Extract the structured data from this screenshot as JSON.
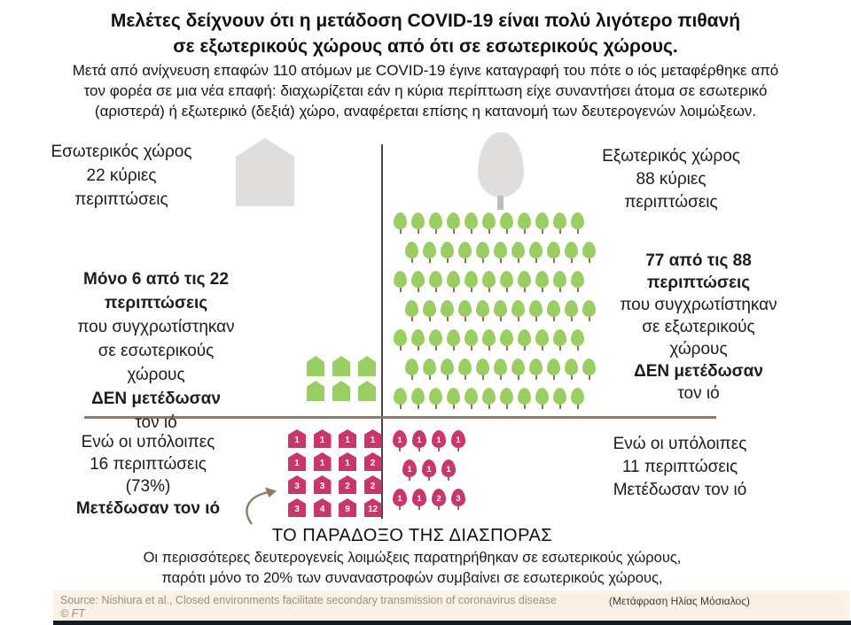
{
  "page": {
    "title_line1": "Μελέτες δείχνουν ότι η μετάδοση COVID-19 είναι πολύ λιγότερο πιθανή",
    "title_line2": "σε εξωτερικούς χώρους από ότι σε εσωτερικούς χώρους.",
    "subtitle_line1": "Μετά από ανίχνευση επαφών 110 ατόμων με COVID-19 έγινε καταγραφή του πότε ο ιός μεταφέρθηκε από",
    "subtitle_line2": "τον φορέα σε μια νέα επαφή: διαχωρίζεται εάν η κύρια περίπτωση είχε συναντήσει άτομα σε εσωτερικό",
    "subtitle_line3": "(αριστερά) ή εξωτερικό (δεξιά) χώρο, αναφέρεται επίσης η κατανομή των δευτερογενών λοιμώξεων."
  },
  "indoor": {
    "header_line1": "Εσωτερικός  χώρος",
    "header_line2": "22 κύριες",
    "header_line3": "περιπτώσεις",
    "no_transmit_line1": "Μόνο 6 από τις 22 περιπτώσεις",
    "no_transmit_line2": "που συγχρωτίστηκαν",
    "no_transmit_line3": "σε εσωτερικούς",
    "no_transmit_line4": "χώρους",
    "no_transmit_line5": "ΔΕΝ μετέδωσαν",
    "no_transmit_line6": "τον ιό",
    "transmit_line1": "Ενώ οι υπόλοιπες",
    "transmit_line2": "16 περιπτώσεις",
    "transmit_line3": "(73%)",
    "transmit_line4": "Μετέδωσαν  τον ιό"
  },
  "outdoor": {
    "header_line1": "Εξωτερικός  χώρος",
    "header_line2": "88 κύριες",
    "header_line3": "περιπτώσεις",
    "no_transmit_line1": "77 από τις 88",
    "no_transmit_line2": "περιπτώσεις",
    "no_transmit_line3": "που συγχρωτίστηκαν",
    "no_transmit_line4": "σε εξωτερικούς",
    "no_transmit_line5": "χώρους",
    "no_transmit_line6": "ΔΕΝ μετέδωσαν",
    "no_transmit_line7": "τον ιό",
    "transmit_line1": "Ενώ οι υπόλοιπες",
    "transmit_line2": "11 περιπτώσεις",
    "transmit_line3": "Μετέδωσαν τον ιό"
  },
  "paradox": {
    "heading": "ΤΟ ΠΑΡΑΔΟΞΟ ΤΗΣ ΔΙΑΣΠΟΡΑΣ",
    "line1": "Οι περισσότερες δευτερογενείς λοιμώξεις παρατηρήθηκαν σε εσωτερικούς  χώρους,",
    "line2": "παρότι μόνο το 20% των συναναστροφών συμβαίνει σε εσωτερικούς  χώρους,"
  },
  "source": {
    "text": "Source: Nishiura et al., Closed environments facilitate secondary transmission of coronavirus disease",
    "translation": "(Μετάφραση Ηλίας Μόσιαλος)",
    "copyright": "© FT"
  },
  "colors": {
    "green": "#9BCE62",
    "pink": "#C8366B",
    "gray_icon": "#DFDEDC",
    "trunk_brown": "#8B7355",
    "divider_h": "#8C7B6B",
    "divider_v": "#4A443C",
    "source_bg": "#FCF1E5",
    "bottom_bar": "#151C28"
  },
  "icons": {
    "indoor_main_icon": "house-icon",
    "outdoor_main_icon": "tree-icon",
    "green_house_rows": [
      3,
      3
    ],
    "green_tree_rows": [
      11,
      11,
      11,
      11,
      11,
      11,
      11
    ],
    "indoor_secondary_rows": [
      [
        1,
        1,
        1,
        1
      ],
      [
        1,
        1,
        1,
        2
      ],
      [
        3,
        3,
        2,
        2
      ],
      [
        3,
        4,
        9,
        12
      ]
    ],
    "outdoor_secondary_rows": [
      [
        1,
        1,
        1,
        1
      ],
      [
        1,
        1,
        1
      ],
      [
        1,
        1,
        2,
        3
      ]
    ]
  },
  "chart_data": {
    "type": "pictogram",
    "title": "Μελέτες δείχνουν ότι η μετάδοση COVID-19 είναι πολύ λιγότερο πιθανή σε εξωτερικούς χώρους από ότι σε εσωτερικούς χώρους.",
    "total_traced_cases": 110,
    "groups": [
      {
        "name": "Εσωτερικός χώρος (indoor, left)",
        "icon": "house",
        "primary_cases": 22,
        "did_not_transmit": 6,
        "transmitted": 16,
        "transmitted_share": "73%",
        "secondary_infections_per_transmitting_case": [
          1,
          1,
          1,
          1,
          1,
          1,
          1,
          2,
          3,
          3,
          2,
          2,
          3,
          4,
          9,
          12
        ],
        "no_transmit_color": "#9BCE62",
        "transmit_color": "#C8366B"
      },
      {
        "name": "Εξωτερικός χώρος (outdoor, right)",
        "icon": "tree",
        "primary_cases": 88,
        "did_not_transmit": 77,
        "transmitted": 11,
        "secondary_infections_per_transmitting_case": [
          1,
          1,
          1,
          1,
          1,
          1,
          1,
          1,
          1,
          2,
          3
        ],
        "no_transmit_color": "#9BCE62",
        "transmit_color": "#C8366B"
      }
    ],
    "annotation": "ΤΟ ΠΑΡΑΔΟΞΟ ΤΗΣ ΔΙΑΣΠΟΡΑΣ",
    "legend_position": "none",
    "grid": false
  }
}
